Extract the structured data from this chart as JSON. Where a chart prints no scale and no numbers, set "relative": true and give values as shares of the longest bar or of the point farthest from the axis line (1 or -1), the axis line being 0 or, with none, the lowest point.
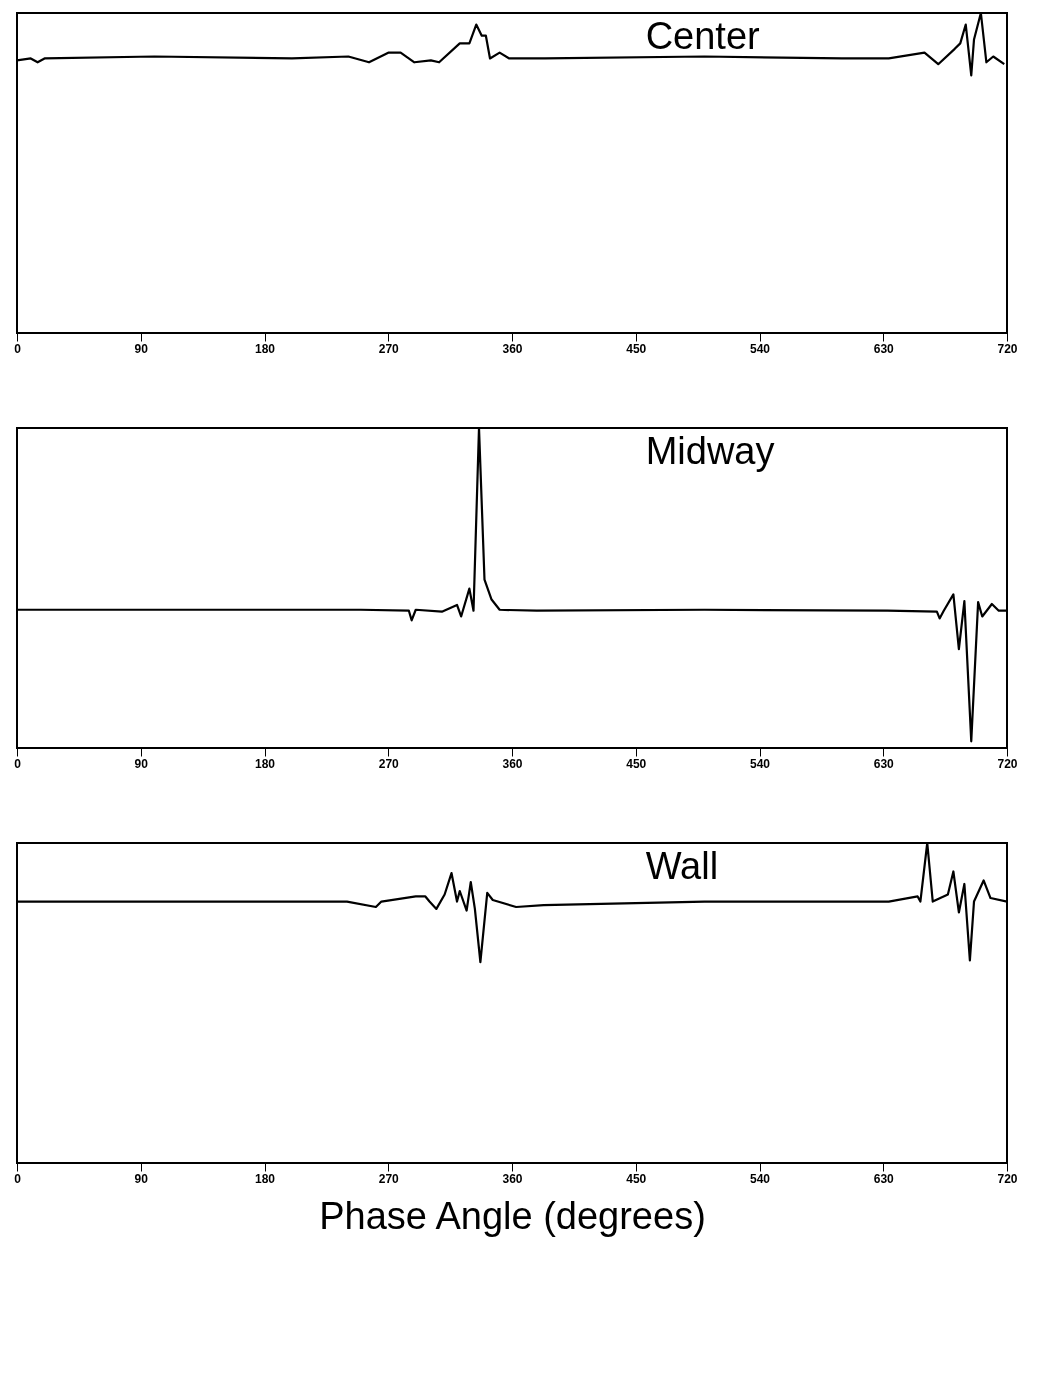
{
  "chart_data": [
    {
      "type": "line",
      "title": "Center",
      "relative": true,
      "color": "#000000",
      "grid": false,
      "tick_labels": "x",
      "xlim": [
        0,
        720
      ],
      "xticks": [
        0,
        90,
        180,
        270,
        360,
        450,
        540,
        630,
        720
      ],
      "x": [
        0,
        10,
        15,
        20,
        100,
        200,
        241,
        256,
        270,
        279,
        289,
        301,
        307,
        322,
        329,
        334,
        338,
        341,
        344,
        351,
        358,
        384,
        500,
        600,
        634,
        660,
        670,
        682,
        686,
        690,
        694,
        696,
        701,
        705,
        710,
        718
      ],
      "values": [
        0.852,
        0.858,
        0.846,
        0.858,
        0.864,
        0.858,
        0.864,
        0.846,
        0.876,
        0.876,
        0.846,
        0.852,
        0.846,
        0.905,
        0.905,
        0.964,
        0.929,
        0.929,
        0.858,
        0.876,
        0.858,
        0.858,
        0.864,
        0.858,
        0.858,
        0.876,
        0.84,
        0.888,
        0.905,
        0.964,
        0.805,
        0.917,
        1.0,
        0.846,
        0.864,
        0.84
      ]
    },
    {
      "type": "line",
      "title": "Midway",
      "relative": true,
      "color": "#000000",
      "grid": false,
      "tick_labels": "x",
      "xlim": [
        0,
        720
      ],
      "xticks": [
        0,
        90,
        180,
        270,
        360,
        450,
        540,
        630,
        720
      ],
      "x": [
        0,
        100,
        200,
        250,
        285,
        287,
        290,
        309,
        320,
        323,
        329,
        332,
        336,
        340,
        345,
        351,
        378,
        500,
        633,
        669,
        671,
        674,
        681,
        685,
        689,
        694,
        699,
        702,
        709,
        714,
        720
      ],
      "values": [
        0.432,
        0.432,
        0.432,
        0.432,
        0.429,
        0.399,
        0.432,
        0.426,
        0.447,
        0.411,
        0.498,
        0.429,
        1.0,
        0.526,
        0.465,
        0.432,
        0.429,
        0.432,
        0.429,
        0.426,
        0.405,
        0.429,
        0.48,
        0.309,
        0.459,
        0.021,
        0.456,
        0.411,
        0.45,
        0.429,
        0.429
      ]
    },
    {
      "type": "line",
      "title": "Wall",
      "xlabel": "Phase Angle (degrees)",
      "relative": true,
      "color": "#000000",
      "grid": false,
      "tick_labels": "x",
      "xlim": [
        0,
        720
      ],
      "xticks": [
        0,
        90,
        180,
        270,
        360,
        450,
        540,
        630,
        720
      ],
      "x": [
        0,
        100,
        200,
        240,
        261,
        265,
        290,
        297,
        300,
        305,
        311,
        316,
        320,
        322,
        327,
        330,
        333,
        337,
        342,
        346,
        363,
        383,
        500,
        634,
        655,
        657,
        662,
        666,
        677,
        681,
        685,
        689,
        693,
        696,
        703,
        708,
        720
      ],
      "values": [
        0.817,
        0.817,
        0.817,
        0.817,
        0.8,
        0.817,
        0.833,
        0.833,
        0.817,
        0.794,
        0.839,
        0.906,
        0.817,
        0.85,
        0.789,
        0.878,
        0.794,
        0.628,
        0.844,
        0.822,
        0.8,
        0.806,
        0.817,
        0.817,
        0.833,
        0.817,
        1.0,
        0.817,
        0.839,
        0.911,
        0.783,
        0.872,
        0.633,
        0.817,
        0.883,
        0.828,
        0.817
      ]
    }
  ]
}
